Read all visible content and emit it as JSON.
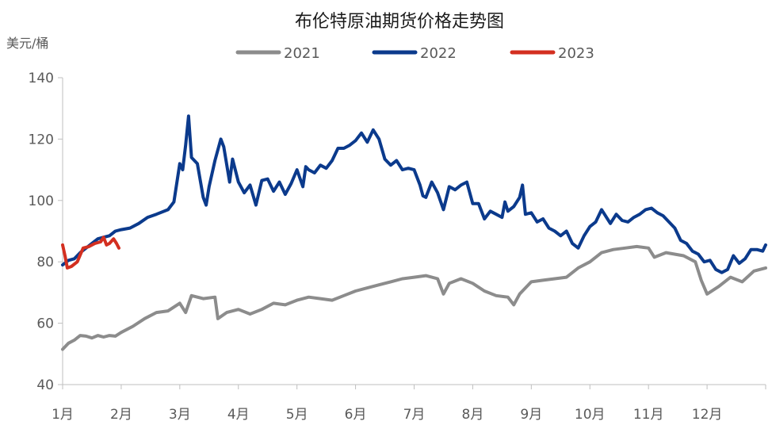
{
  "chart_data": {
    "type": "line",
    "title": "布伦特原油期货价格走势图",
    "ylabel": "美元/桶",
    "xlabel": "",
    "ylim": [
      40,
      140
    ],
    "yticks": [
      40,
      60,
      80,
      100,
      120,
      140
    ],
    "x_months": [
      1,
      2,
      3,
      4,
      5,
      6,
      7,
      8,
      9,
      10,
      11,
      12
    ],
    "x_tick_labels": [
      "1月",
      "2月",
      "3月",
      "4月",
      "5月",
      "6月",
      "7月",
      "8月",
      "9月",
      "10月",
      "11月",
      "12月"
    ],
    "grid": false,
    "legend_position": "top",
    "series": [
      {
        "name": "2021",
        "color": "#8c8c8c",
        "points": [
          [
            1.0,
            51.5
          ],
          [
            1.1,
            53.5
          ],
          [
            1.2,
            54.5
          ],
          [
            1.3,
            56.0
          ],
          [
            1.4,
            55.8
          ],
          [
            1.5,
            55.2
          ],
          [
            1.6,
            56.0
          ],
          [
            1.7,
            55.5
          ],
          [
            1.8,
            56.0
          ],
          [
            1.9,
            55.8
          ],
          [
            2.0,
            57.0
          ],
          [
            2.2,
            59.0
          ],
          [
            2.4,
            61.5
          ],
          [
            2.6,
            63.5
          ],
          [
            2.8,
            64.0
          ],
          [
            3.0,
            66.5
          ],
          [
            3.1,
            63.5
          ],
          [
            3.2,
            69.0
          ],
          [
            3.4,
            68.0
          ],
          [
            3.6,
            68.5
          ],
          [
            3.65,
            61.5
          ],
          [
            3.8,
            63.5
          ],
          [
            4.0,
            64.5
          ],
          [
            4.2,
            63.0
          ],
          [
            4.4,
            64.5
          ],
          [
            4.6,
            66.5
          ],
          [
            4.8,
            66.0
          ],
          [
            5.0,
            67.5
          ],
          [
            5.2,
            68.5
          ],
          [
            5.4,
            68.0
          ],
          [
            5.6,
            67.5
          ],
          [
            5.8,
            69.0
          ],
          [
            6.0,
            70.5
          ],
          [
            6.2,
            71.5
          ],
          [
            6.4,
            72.5
          ],
          [
            6.6,
            73.5
          ],
          [
            6.8,
            74.5
          ],
          [
            7.0,
            75.0
          ],
          [
            7.2,
            75.5
          ],
          [
            7.4,
            74.5
          ],
          [
            7.5,
            69.5
          ],
          [
            7.6,
            73.0
          ],
          [
            7.8,
            74.5
          ],
          [
            8.0,
            73.0
          ],
          [
            8.2,
            70.5
          ],
          [
            8.4,
            69.0
          ],
          [
            8.6,
            68.5
          ],
          [
            8.7,
            66.0
          ],
          [
            8.8,
            69.5
          ],
          [
            9.0,
            73.5
          ],
          [
            9.2,
            74.0
          ],
          [
            9.4,
            74.5
          ],
          [
            9.6,
            75.0
          ],
          [
            9.8,
            78.0
          ],
          [
            10.0,
            80.0
          ],
          [
            10.2,
            83.0
          ],
          [
            10.4,
            84.0
          ],
          [
            10.6,
            84.5
          ],
          [
            10.8,
            85.0
          ],
          [
            11.0,
            84.5
          ],
          [
            11.1,
            81.5
          ],
          [
            11.3,
            83.0
          ],
          [
            11.6,
            82.0
          ],
          [
            11.8,
            80.0
          ],
          [
            11.9,
            74.0
          ],
          [
            12.0,
            69.5
          ],
          [
            12.2,
            72.0
          ],
          [
            12.4,
            75.0
          ],
          [
            12.6,
            73.5
          ],
          [
            12.8,
            77.0
          ],
          [
            13.0,
            78.0
          ]
        ]
      },
      {
        "name": "2022",
        "color": "#0b3a8c",
        "points": [
          [
            1.0,
            79.0
          ],
          [
            1.1,
            80.5
          ],
          [
            1.2,
            81.0
          ],
          [
            1.3,
            83.0
          ],
          [
            1.4,
            84.5
          ],
          [
            1.5,
            86.0
          ],
          [
            1.6,
            87.5
          ],
          [
            1.7,
            88.0
          ],
          [
            1.8,
            88.5
          ],
          [
            1.9,
            90.0
          ],
          [
            2.0,
            90.5
          ],
          [
            2.15,
            91.0
          ],
          [
            2.3,
            92.5
          ],
          [
            2.45,
            94.5
          ],
          [
            2.6,
            95.5
          ],
          [
            2.8,
            97.0
          ],
          [
            2.9,
            99.5
          ],
          [
            3.0,
            112.0
          ],
          [
            3.05,
            110.0
          ],
          [
            3.1,
            118.0
          ],
          [
            3.15,
            127.5
          ],
          [
            3.2,
            114.0
          ],
          [
            3.3,
            112.0
          ],
          [
            3.4,
            101.0
          ],
          [
            3.45,
            98.5
          ],
          [
            3.5,
            104.5
          ],
          [
            3.6,
            113.0
          ],
          [
            3.7,
            120.0
          ],
          [
            3.75,
            117.5
          ],
          [
            3.85,
            106.0
          ],
          [
            3.9,
            113.5
          ],
          [
            4.0,
            106.0
          ],
          [
            4.1,
            102.5
          ],
          [
            4.2,
            105.0
          ],
          [
            4.3,
            98.5
          ],
          [
            4.4,
            106.5
          ],
          [
            4.5,
            107.0
          ],
          [
            4.6,
            103.0
          ],
          [
            4.7,
            106.0
          ],
          [
            4.8,
            102.0
          ],
          [
            4.9,
            105.5
          ],
          [
            5.0,
            110.0
          ],
          [
            5.1,
            104.5
          ],
          [
            5.15,
            111.0
          ],
          [
            5.2,
            110.0
          ],
          [
            5.3,
            109.0
          ],
          [
            5.4,
            111.5
          ],
          [
            5.5,
            110.5
          ],
          [
            5.6,
            113.0
          ],
          [
            5.7,
            117.0
          ],
          [
            5.8,
            117.0
          ],
          [
            5.9,
            118.0
          ],
          [
            6.0,
            119.5
          ],
          [
            6.1,
            122.0
          ],
          [
            6.2,
            119.0
          ],
          [
            6.3,
            123.0
          ],
          [
            6.4,
            120.0
          ],
          [
            6.5,
            113.5
          ],
          [
            6.6,
            111.5
          ],
          [
            6.7,
            113.0
          ],
          [
            6.8,
            110.0
          ],
          [
            6.9,
            110.5
          ],
          [
            7.0,
            110.0
          ],
          [
            7.1,
            105.0
          ],
          [
            7.15,
            101.5
          ],
          [
            7.2,
            101.0
          ],
          [
            7.3,
            106.0
          ],
          [
            7.4,
            102.5
          ],
          [
            7.5,
            97.0
          ],
          [
            7.6,
            104.5
          ],
          [
            7.7,
            103.5
          ],
          [
            7.8,
            105.0
          ],
          [
            7.9,
            106.0
          ],
          [
            8.0,
            99.0
          ],
          [
            8.1,
            99.0
          ],
          [
            8.2,
            94.0
          ],
          [
            8.3,
            96.5
          ],
          [
            8.4,
            95.5
          ],
          [
            8.5,
            94.5
          ],
          [
            8.55,
            99.5
          ],
          [
            8.6,
            96.5
          ],
          [
            8.7,
            98.0
          ],
          [
            8.8,
            101.0
          ],
          [
            8.85,
            105.0
          ],
          [
            8.9,
            95.5
          ],
          [
            9.0,
            96.0
          ],
          [
            9.1,
            93.0
          ],
          [
            9.2,
            94.0
          ],
          [
            9.3,
            91.0
          ],
          [
            9.4,
            90.0
          ],
          [
            9.5,
            88.5
          ],
          [
            9.6,
            90.0
          ],
          [
            9.7,
            86.0
          ],
          [
            9.8,
            84.5
          ],
          [
            9.9,
            88.5
          ],
          [
            10.0,
            91.5
          ],
          [
            10.1,
            93.0
          ],
          [
            10.2,
            97.0
          ],
          [
            10.25,
            95.5
          ],
          [
            10.35,
            92.5
          ],
          [
            10.45,
            95.5
          ],
          [
            10.55,
            93.5
          ],
          [
            10.65,
            93.0
          ],
          [
            10.75,
            94.5
          ],
          [
            10.85,
            95.5
          ],
          [
            10.95,
            97.0
          ],
          [
            11.05,
            97.5
          ],
          [
            11.15,
            96.0
          ],
          [
            11.25,
            95.0
          ],
          [
            11.35,
            93.0
          ],
          [
            11.45,
            91.0
          ],
          [
            11.55,
            87.0
          ],
          [
            11.65,
            86.0
          ],
          [
            11.75,
            83.5
          ],
          [
            11.85,
            82.5
          ],
          [
            11.95,
            80.0
          ],
          [
            12.05,
            80.5
          ],
          [
            12.15,
            77.5
          ],
          [
            12.25,
            76.5
          ],
          [
            12.35,
            77.5
          ],
          [
            12.45,
            82.0
          ],
          [
            12.55,
            79.5
          ],
          [
            12.65,
            81.0
          ],
          [
            12.75,
            84.0
          ],
          [
            12.85,
            84.0
          ],
          [
            12.95,
            83.5
          ],
          [
            13.0,
            85.5
          ]
        ]
      },
      {
        "name": "2023",
        "color": "#d32f20",
        "points": [
          [
            1.0,
            85.5
          ],
          [
            1.04,
            82.0
          ],
          [
            1.08,
            78.0
          ],
          [
            1.15,
            78.5
          ],
          [
            1.25,
            80.0
          ],
          [
            1.35,
            84.5
          ],
          [
            1.45,
            85.0
          ],
          [
            1.55,
            86.0
          ],
          [
            1.65,
            86.5
          ],
          [
            1.7,
            88.0
          ],
          [
            1.75,
            85.5
          ],
          [
            1.8,
            86.0
          ],
          [
            1.87,
            87.5
          ],
          [
            1.92,
            86.0
          ],
          [
            1.96,
            84.5
          ]
        ]
      }
    ]
  }
}
